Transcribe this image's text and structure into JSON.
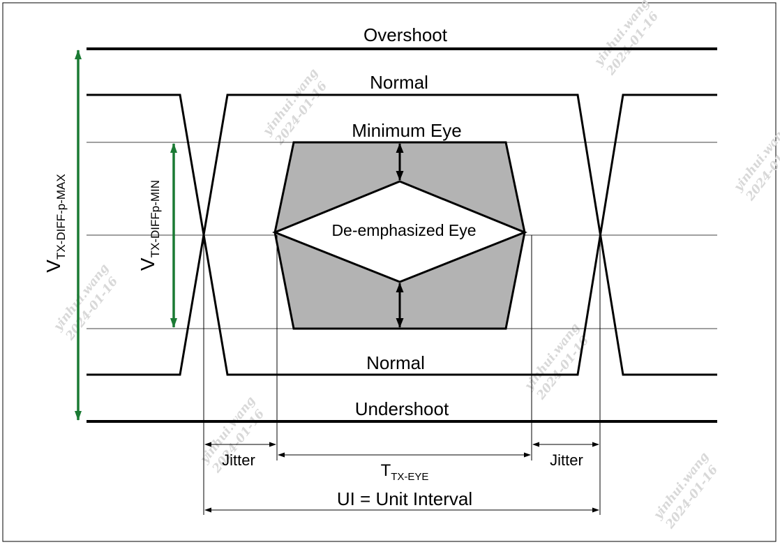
{
  "diagram": {
    "title_levels": {
      "overshoot": "Overshoot",
      "normal_top": "Normal",
      "minimum_eye": "Minimum Eye",
      "normal_bottom": "Normal",
      "undershoot": "Undershoot"
    },
    "eye": {
      "deemphasized": "De-emphasized Eye"
    },
    "vmax": {
      "main": "V",
      "sub": "TX-DIFF-p-MAX"
    },
    "vmin": {
      "main": "V",
      "sub": "TX-DIFFp-MIN"
    },
    "timing": {
      "jitter_left": "Jitter",
      "jitter_right": "Jitter",
      "teye_main": "T",
      "teye_sub": "TX-EYE",
      "ui": "UI = Unit Interval"
    },
    "watermark": {
      "name": "yinhui.wang",
      "date": "2024-01-16"
    },
    "colors": {
      "arrow_green": "#1a7a33",
      "eye_fill": "#b3b3b3",
      "line": "#000000"
    }
  }
}
